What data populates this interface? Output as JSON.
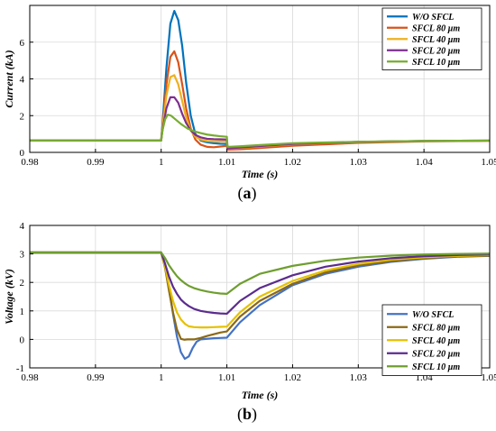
{
  "chart_data": [
    {
      "type": "line",
      "caption": "a",
      "xlabel": "Time (s)",
      "ylabel": "Current (kA)",
      "xlim": [
        0.98,
        1.05
      ],
      "ylim": [
        0,
        8
      ],
      "xticks": [
        "0.98",
        "0.99",
        "1",
        "1.01",
        "1.02",
        "1.03",
        "1.04",
        "1.05"
      ],
      "yticks": [
        "0",
        "2",
        "4",
        "6"
      ],
      "grid": true,
      "legend_position": "top-right",
      "series": [
        {
          "name": "W/O SFCL",
          "color": "#0072BD",
          "x": [
            0.98,
            1.0,
            1.0002,
            1.0008,
            1.0014,
            1.002,
            1.0026,
            1.0032,
            1.0038,
            1.0045,
            1.0052,
            1.006,
            1.007,
            1.008,
            1.009,
            1.01,
            1.0101,
            1.012,
            1.015,
            1.02,
            1.03,
            1.04,
            1.05
          ],
          "y": [
            0.65,
            0.65,
            1.5,
            4.6,
            7.0,
            7.7,
            7.2,
            5.8,
            3.8,
            2.0,
            1.0,
            0.65,
            0.55,
            0.5,
            0.47,
            0.46,
            0.25,
            0.27,
            0.33,
            0.45,
            0.57,
            0.62,
            0.64
          ]
        },
        {
          "name": "SFCL 80 µm",
          "color": "#D95319",
          "x": [
            0.98,
            1.0,
            1.0002,
            1.0008,
            1.0014,
            1.002,
            1.0026,
            1.0032,
            1.0038,
            1.0045,
            1.0052,
            1.006,
            1.007,
            1.008,
            1.009,
            1.01,
            1.0101,
            1.012,
            1.015,
            1.02,
            1.03,
            1.04,
            1.05
          ],
          "y": [
            0.65,
            0.65,
            1.4,
            3.7,
            5.2,
            5.5,
            4.9,
            3.7,
            2.4,
            1.3,
            0.7,
            0.42,
            0.3,
            0.28,
            0.32,
            0.36,
            0.15,
            0.17,
            0.24,
            0.36,
            0.52,
            0.6,
            0.63
          ]
        },
        {
          "name": "SFCL 40 µm",
          "color": "#EDB120",
          "x": [
            0.98,
            1.0,
            1.0002,
            1.0008,
            1.0014,
            1.002,
            1.0026,
            1.0032,
            1.0038,
            1.0045,
            1.0052,
            1.006,
            1.007,
            1.008,
            1.009,
            1.01,
            1.0101,
            1.012,
            1.015,
            1.02,
            1.03,
            1.04,
            1.05
          ],
          "y": [
            0.65,
            0.65,
            1.3,
            3.1,
            4.1,
            4.2,
            3.7,
            2.8,
            1.9,
            1.2,
            0.85,
            0.7,
            0.62,
            0.6,
            0.6,
            0.6,
            0.2,
            0.24,
            0.32,
            0.44,
            0.56,
            0.62,
            0.64
          ]
        },
        {
          "name": "SFCL 20 µm",
          "color": "#7E2F8E",
          "x": [
            0.98,
            1.0,
            1.0002,
            1.0008,
            1.0014,
            1.002,
            1.0026,
            1.0032,
            1.0038,
            1.0045,
            1.0052,
            1.006,
            1.007,
            1.008,
            1.009,
            1.01,
            1.0101,
            1.012,
            1.015,
            1.02,
            1.03,
            1.04,
            1.05
          ],
          "y": [
            0.65,
            0.65,
            1.2,
            2.4,
            3.0,
            3.0,
            2.7,
            2.1,
            1.6,
            1.2,
            0.95,
            0.82,
            0.74,
            0.72,
            0.71,
            0.7,
            0.22,
            0.26,
            0.34,
            0.46,
            0.57,
            0.62,
            0.64
          ]
        },
        {
          "name": "SFCL 10 µm",
          "color": "#77AC30",
          "x": [
            0.98,
            1.0,
            1.0002,
            1.0006,
            1.001,
            1.0015,
            1.002,
            1.003,
            1.004,
            1.005,
            1.006,
            1.007,
            1.008,
            1.009,
            1.01,
            1.0101,
            1.012,
            1.015,
            1.02,
            1.03,
            1.04,
            1.05
          ],
          "y": [
            0.65,
            0.65,
            1.2,
            1.8,
            2.05,
            2.0,
            1.85,
            1.55,
            1.3,
            1.15,
            1.05,
            0.97,
            0.92,
            0.88,
            0.85,
            0.3,
            0.33,
            0.4,
            0.5,
            0.58,
            0.62,
            0.64
          ]
        }
      ]
    },
    {
      "type": "line",
      "caption": "b",
      "xlabel": "Time (s)",
      "ylabel": "Voltage (kV)",
      "xlim": [
        0.98,
        1.05
      ],
      "ylim": [
        -1,
        4
      ],
      "xticks": [
        "0.98",
        "0.99",
        "1",
        "1.01",
        "1.02",
        "1.03",
        "1.04",
        "1.05"
      ],
      "yticks": [
        "-1",
        "0",
        "1",
        "2",
        "3",
        "4"
      ],
      "grid": true,
      "legend_position": "bottom-right",
      "series": [
        {
          "name": "W/O SFCL",
          "color": "#4472C4",
          "x": [
            0.98,
            1.0,
            1.0006,
            1.0012,
            1.0018,
            1.0024,
            1.003,
            1.0036,
            1.0042,
            1.0048,
            1.0054,
            1.006,
            1.007,
            1.008,
            1.009,
            1.01,
            1.012,
            1.015,
            1.02,
            1.025,
            1.03,
            1.035,
            1.04,
            1.045,
            1.05
          ],
          "y": [
            3.05,
            3.05,
            2.6,
            1.8,
            0.9,
            0.1,
            -0.45,
            -0.68,
            -0.6,
            -0.3,
            -0.08,
            0.0,
            0.02,
            0.04,
            0.05,
            0.06,
            0.6,
            1.2,
            1.9,
            2.3,
            2.55,
            2.72,
            2.83,
            2.9,
            2.93
          ]
        },
        {
          "name": "SFCL 80 µm",
          "color": "#8B6914",
          "x": [
            0.98,
            1.0,
            1.0006,
            1.0012,
            1.0018,
            1.0024,
            1.003,
            1.0035,
            1.004,
            1.005,
            1.006,
            1.007,
            1.008,
            1.009,
            1.01,
            1.012,
            1.015,
            1.02,
            1.025,
            1.03,
            1.035,
            1.04,
            1.045,
            1.05
          ],
          "y": [
            3.05,
            3.05,
            2.5,
            1.7,
            0.95,
            0.35,
            0.02,
            -0.01,
            0.0,
            0.0,
            0.05,
            0.12,
            0.18,
            0.24,
            0.28,
            0.8,
            1.35,
            1.95,
            2.35,
            2.6,
            2.75,
            2.85,
            2.91,
            2.94
          ]
        },
        {
          "name": "SFCL 40 µm",
          "color": "#E5C100",
          "x": [
            0.98,
            1.0,
            1.0006,
            1.0012,
            1.0018,
            1.0024,
            1.003,
            1.0036,
            1.0042,
            1.005,
            1.006,
            1.007,
            1.008,
            1.009,
            1.01,
            1.012,
            1.015,
            1.02,
            1.025,
            1.03,
            1.035,
            1.04,
            1.045,
            1.05
          ],
          "y": [
            3.05,
            3.05,
            2.55,
            1.9,
            1.35,
            0.95,
            0.7,
            0.55,
            0.46,
            0.43,
            0.42,
            0.42,
            0.43,
            0.44,
            0.45,
            0.95,
            1.5,
            2.05,
            2.42,
            2.65,
            2.8,
            2.88,
            2.93,
            2.96
          ]
        },
        {
          "name": "SFCL 20 µm",
          "color": "#5B2C8E",
          "x": [
            0.98,
            1.0,
            1.0006,
            1.0012,
            1.0018,
            1.0024,
            1.003,
            1.0036,
            1.0042,
            1.005,
            1.006,
            1.007,
            1.008,
            1.009,
            1.01,
            1.012,
            1.015,
            1.02,
            1.025,
            1.03,
            1.035,
            1.04,
            1.045,
            1.05
          ],
          "y": [
            3.05,
            3.05,
            2.65,
            2.2,
            1.85,
            1.6,
            1.4,
            1.27,
            1.17,
            1.07,
            1.0,
            0.96,
            0.93,
            0.91,
            0.9,
            1.35,
            1.8,
            2.25,
            2.55,
            2.73,
            2.85,
            2.92,
            2.96,
            2.98
          ]
        },
        {
          "name": "SFCL 10 µm",
          "color": "#6E9E2F",
          "x": [
            0.98,
            1.0,
            1.0006,
            1.0012,
            1.0018,
            1.0024,
            1.003,
            1.0036,
            1.0042,
            1.005,
            1.006,
            1.007,
            1.008,
            1.009,
            1.01,
            1.012,
            1.015,
            1.02,
            1.025,
            1.03,
            1.035,
            1.04,
            1.045,
            1.05
          ],
          "y": [
            3.05,
            3.05,
            2.85,
            2.6,
            2.4,
            2.22,
            2.08,
            1.97,
            1.88,
            1.8,
            1.73,
            1.68,
            1.64,
            1.61,
            1.6,
            1.95,
            2.3,
            2.58,
            2.76,
            2.87,
            2.94,
            2.98,
            3.0,
            3.01
          ]
        }
      ]
    }
  ]
}
